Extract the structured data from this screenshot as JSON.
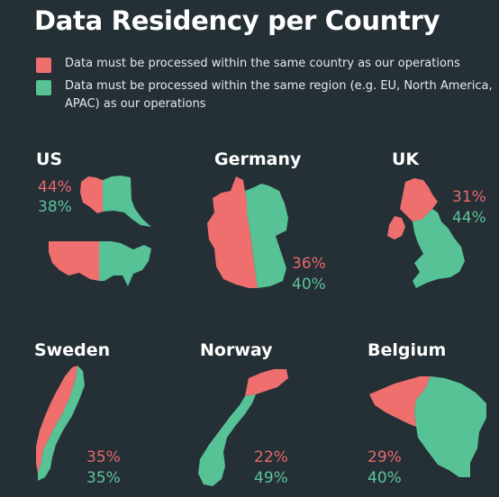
{
  "title": "Data Residency per Country",
  "colors": {
    "country": "#ef6e6e",
    "region": "#56c295",
    "background": "#242f36"
  },
  "legend": [
    {
      "color": "#ef6e6e",
      "text": "Data must be processed within the same country as our operations"
    },
    {
      "color": "#56c295",
      "text": "Data must be processed within the same region (e.g. EU, North America, APAC) as our operations"
    }
  ],
  "chart_data": {
    "type": "table",
    "columns": [
      "Data must be processed within the same country as our operations",
      "Data must be processed within the same region (e.g. EU, North America, APAC) as our operations"
    ],
    "countries": [
      {
        "name": "US",
        "same_country": "44%",
        "same_region": "38%"
      },
      {
        "name": "Germany",
        "same_country": "36%",
        "same_region": "40%"
      },
      {
        "name": "UK",
        "same_country": "31%",
        "same_region": "44%"
      },
      {
        "name": "Sweden",
        "same_country": "35%",
        "same_region": "35%"
      },
      {
        "name": "Norway",
        "same_country": "22%",
        "same_region": "49%"
      },
      {
        "name": "Belgium",
        "same_country": "29%",
        "same_region": "40%"
      }
    ]
  }
}
